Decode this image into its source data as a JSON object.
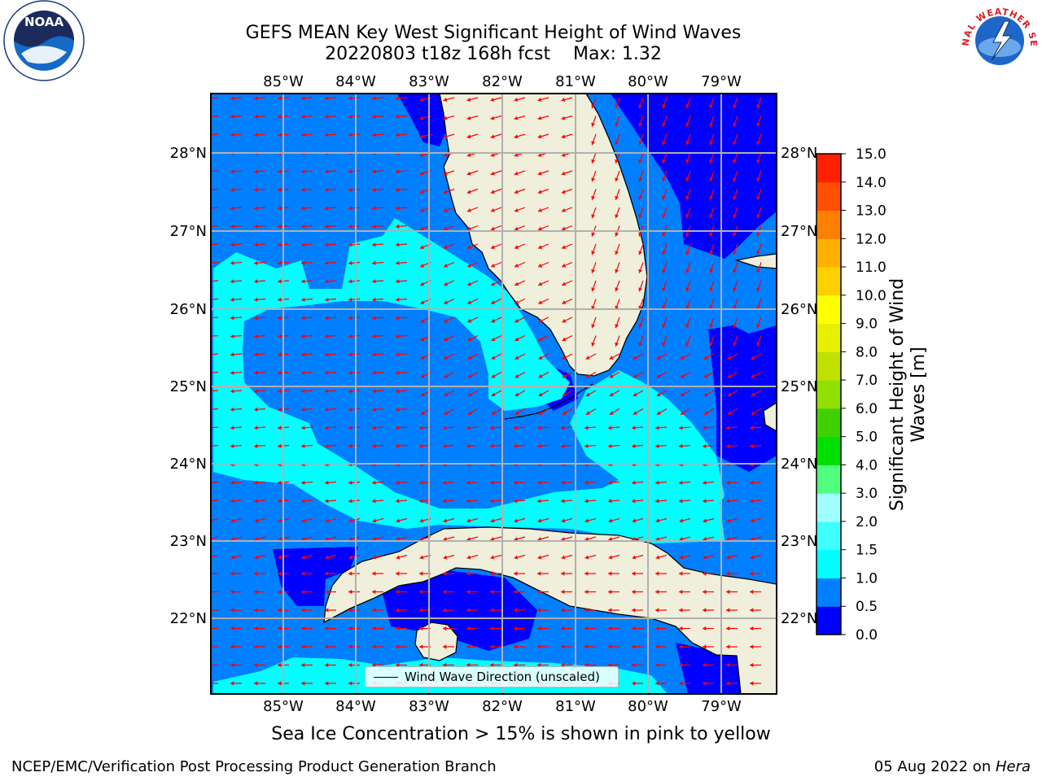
{
  "title": {
    "line1": "GEFS MEAN Key West Significant Height of Wind Waves",
    "line2": "20220803 t18z 168h fcst    Max: 1.32"
  },
  "logos": {
    "left": "noaa-logo",
    "right": "national-weather-service-logo",
    "right_text": "NATIONAL WEATHER SERVICE"
  },
  "map": {
    "lon_labels": [
      "85°W",
      "84°W",
      "83°W",
      "82°W",
      "81°W",
      "80°W",
      "79°W"
    ],
    "lat_labels": [
      "28°N",
      "27°N",
      "26°N",
      "25°N",
      "24°N",
      "23°N",
      "22°N"
    ],
    "lon_values": [
      -85,
      -84,
      -83,
      -82,
      -81,
      -80,
      -79
    ],
    "lat_values": [
      28,
      27,
      26,
      25,
      24,
      23,
      22
    ],
    "extent": {
      "lon_min": -86.0,
      "lon_max": -78.3,
      "lat_min": 21.0,
      "lat_max": 28.75
    },
    "arrow_color": "#ff0000",
    "land_color": "#efefdb",
    "grid": true
  },
  "colorbar": {
    "label_line1": "Significant Height of Wind",
    "label_line2": "Waves [m]",
    "ticks": [
      "15.0",
      "14.0",
      "13.0",
      "12.0",
      "11.0",
      "10.0",
      "9.0",
      "8.0",
      "7.0",
      "6.0",
      "5.0",
      "4.0",
      "3.0",
      "2.0",
      "1.5",
      "1.0",
      "0.5",
      "0.0"
    ],
    "bounds": [
      0.0,
      0.5,
      1.0,
      1.5,
      2.0,
      3.0,
      4.0,
      5.0,
      6.0,
      7.0,
      8.0,
      9.0,
      10.0,
      11.0,
      12.0,
      13.0,
      14.0,
      15.0
    ],
    "colors": [
      "#0000ff",
      "#0080ff",
      "#00ffff",
      "#40ffff",
      "#a0ffff",
      "#50ff80",
      "#00e000",
      "#40d000",
      "#90e000",
      "#c0e000",
      "#e8f000",
      "#ffff00",
      "#ffd000",
      "#ffb000",
      "#ff8000",
      "#ff5000",
      "#ff2000"
    ]
  },
  "legend": {
    "label": "Wind Wave Direction (unscaled)"
  },
  "note": "Sea Ice Concentration > 15% is shown in pink to yellow",
  "footer": {
    "left": "NCEP/EMC/Verification Post Processing Product Generation Branch",
    "right_date": "05 Aug 2022 on ",
    "right_host": "Hera"
  }
}
